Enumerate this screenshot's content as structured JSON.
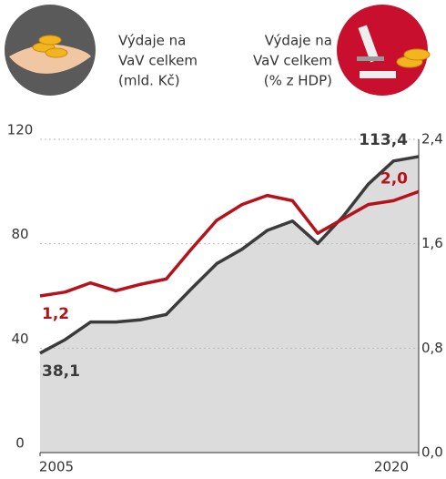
{
  "chart_data": {
    "type": "area-line",
    "y_label": [
      "Výdaje na",
      "VaV celkem",
      "(mld. Kč)"
    ],
    "y2_label": [
      "Výdaje na",
      "VaV celkem",
      "(% z HDP)"
    ],
    "categories": [
      "2005",
      null,
      null,
      null,
      null,
      null,
      null,
      null,
      null,
      null,
      null,
      null,
      null,
      null,
      null,
      "2020"
    ],
    "series": [
      {
        "color": "#3b3b3b",
        "fill": "#dcdcdc",
        "axis": "y",
        "values": [
          38.1,
          43.3,
          50.0,
          50.0,
          50.9,
          52.9,
          62.8,
          72.4,
          77.9,
          85.1,
          88.7,
          80.1,
          90.4,
          102.8,
          111.7,
          113.4
        ],
        "value_labels": [
          "38,1",
          null,
          null,
          null,
          null,
          null,
          null,
          null,
          null,
          null,
          null,
          null,
          null,
          null,
          null,
          "113,4"
        ]
      },
      {
        "color": "#b5121b",
        "axis": "y2",
        "values": [
          1.2,
          1.23,
          1.3,
          1.24,
          1.29,
          1.33,
          1.56,
          1.78,
          1.9,
          1.97,
          1.93,
          1.68,
          1.79,
          1.9,
          1.93,
          2.0
        ],
        "value_labels": [
          "1,2",
          null,
          null,
          null,
          null,
          null,
          null,
          null,
          null,
          null,
          null,
          null,
          null,
          null,
          null,
          "2,0"
        ]
      }
    ],
    "ylim": [
      0,
      120
    ],
    "yticks": [
      0,
      40,
      80,
      120
    ],
    "y2lim": [
      0,
      2.4
    ],
    "y2ticks": [
      {
        "value": 0,
        "label": "0,0"
      },
      {
        "value": 0.8,
        "label": "0,8"
      },
      {
        "value": 1.6,
        "label": "1,6"
      },
      {
        "value": 2.4,
        "label": "2,4"
      }
    ],
    "grid": true
  }
}
